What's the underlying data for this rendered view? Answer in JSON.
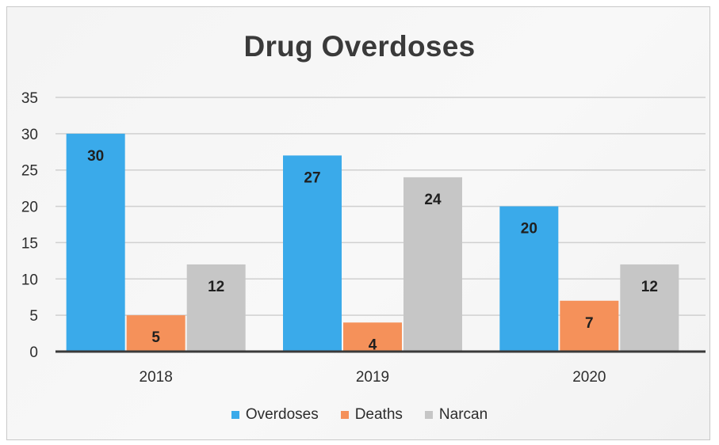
{
  "colors": {
    "Overdoses": "#3aaaea",
    "Deaths": "#f5915a",
    "Narcan": "#c6c6c6"
  },
  "chart_data": {
    "type": "bar",
    "title": "Drug Overdoses",
    "categories": [
      "2018",
      "2019",
      "2020"
    ],
    "series": [
      {
        "name": "Overdoses",
        "values": [
          30,
          27,
          20
        ]
      },
      {
        "name": "Deaths",
        "values": [
          5,
          4,
          7
        ]
      },
      {
        "name": "Narcan",
        "values": [
          12,
          24,
          12
        ]
      }
    ],
    "ylim": [
      0,
      35
    ],
    "yticks": [
      0,
      5,
      10,
      15,
      20,
      25,
      30,
      35
    ],
    "grid": true,
    "legend_position": "bottom"
  }
}
